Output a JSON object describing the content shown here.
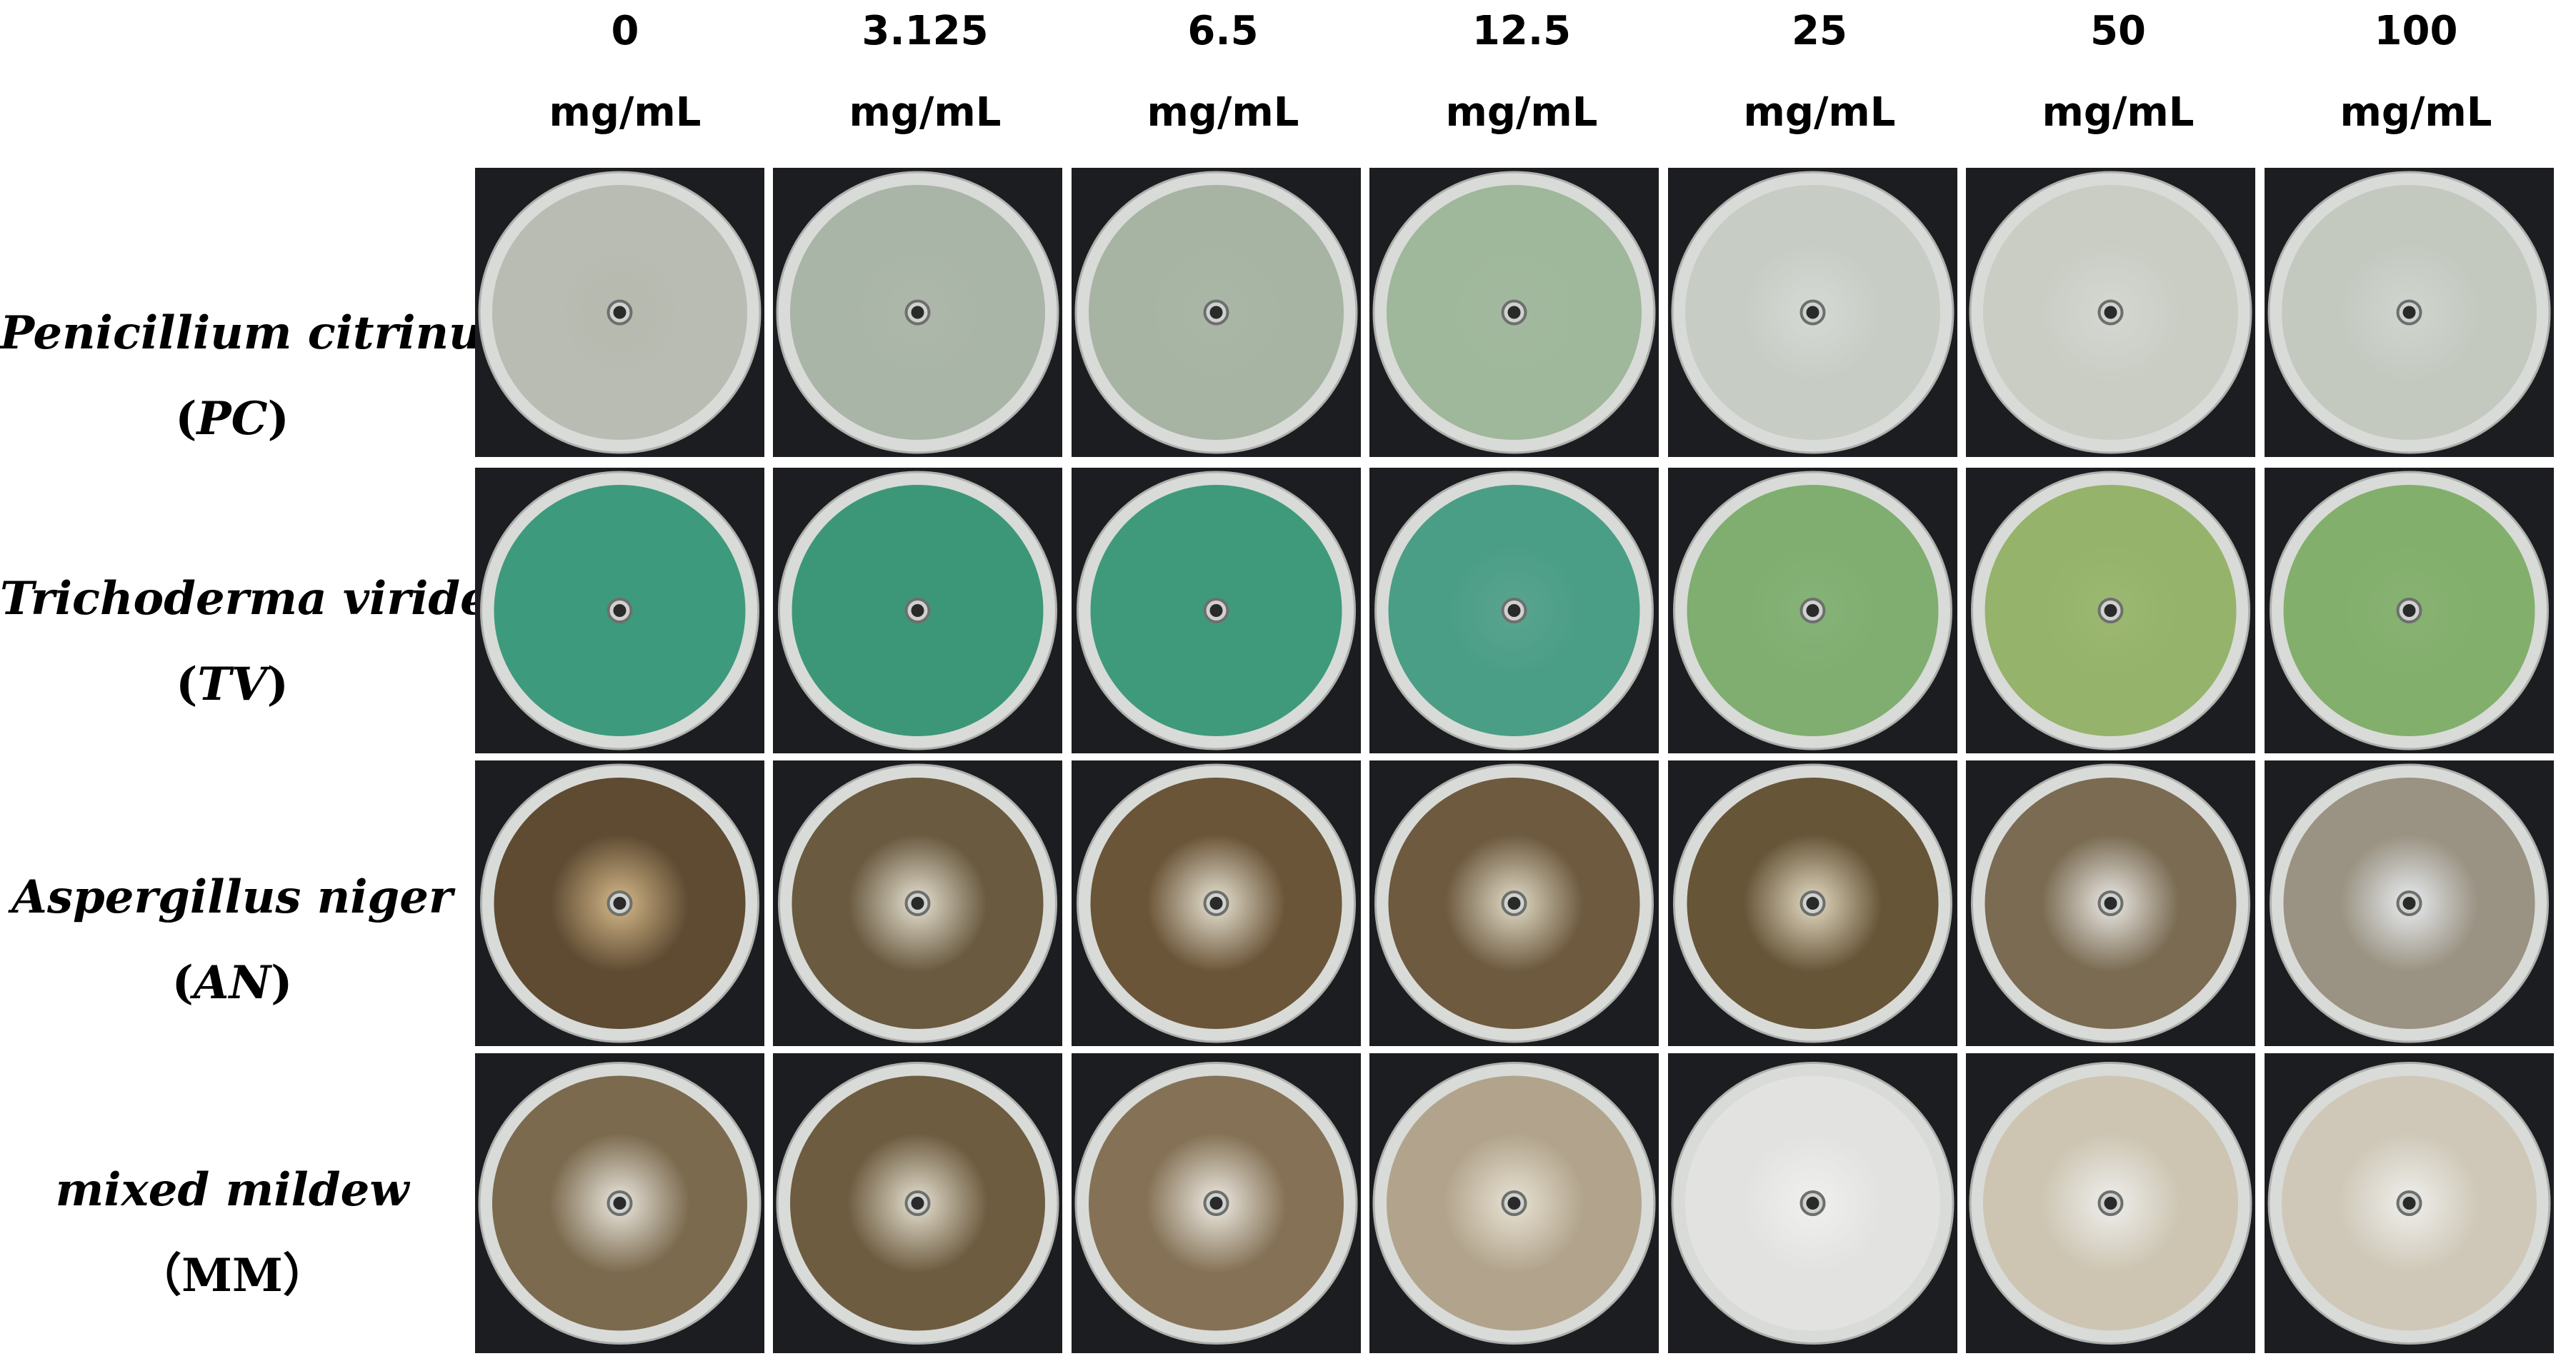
{
  "columns": [
    {
      "value": "0",
      "unit": "mg/mL"
    },
    {
      "value": "3.125",
      "unit": "mg/mL"
    },
    {
      "value": "6.5",
      "unit": "mg/mL"
    },
    {
      "value": "12.5",
      "unit": "mg/mL"
    },
    {
      "value": "25",
      "unit": "mg/mL"
    },
    {
      "value": "50",
      "unit": "mg/mL"
    },
    {
      "value": "100",
      "unit": "mg/mL"
    }
  ],
  "rows": [
    {
      "species": "Penicillium citrinum",
      "abbr_open": "(",
      "abbr": "PC",
      "abbr_close": ")"
    },
    {
      "species": "Trichoderma viride",
      "abbr_open": "(",
      "abbr": "TV",
      "abbr_close": ")"
    },
    {
      "species": "Aspergillus niger",
      "abbr_open": "(",
      "abbr": "AN",
      "abbr_close": ")"
    },
    {
      "species": "mixed mildew",
      "abbr_open": "（",
      "abbr": "MM",
      "abbr_close": "）"
    }
  ],
  "plate_colors": {
    "background": "#1c1d20",
    "rows": [
      [
        "#b9bcb2",
        "#a9b5a7",
        "#a7b3a3",
        "#9fb79a",
        "#c7ccc4",
        "#c9cdc4",
        "#c4c9c0"
      ],
      [
        "#3e9a7d",
        "#3c9778",
        "#3f9a7c",
        "#4a9e85",
        "#7fae70",
        "#95b36a",
        "#83af6d"
      ],
      [
        "#5e4b32",
        "#6a5a40",
        "#6b5538",
        "#6d5a3f",
        "#675538",
        "#7a6b52",
        "#9a9282"
      ],
      [
        "#7b6a4e",
        "#6e5c40",
        "#857256",
        "#b2a48c",
        "#e2e3e0",
        "#cdc5b2",
        "#cfc8b8"
      ]
    ],
    "centers": [
      [
        "#b6b9ae",
        "#aeb7aa",
        "#aab6a6",
        "#a3b9a0",
        "#d6dad6",
        "#d4d8d2",
        "#d0d5cf"
      ],
      [
        "#3e9a7d",
        "#3c9778",
        "#3f9a7c",
        "#5aa48f",
        "#86b378",
        "#9cb872",
        "#87b271"
      ],
      [
        "#d6b98a",
        "#e6e2d2",
        "#e8e4d4",
        "#e3ddc9",
        "#e4dcc4",
        "#eceae6",
        "#e8ecf0"
      ],
      [
        "#ece9e0",
        "#e6e2d2",
        "#efece4",
        "#e8e2d4",
        "#f0f0ee",
        "#eeeeec",
        "#efefec"
      ]
    ]
  }
}
